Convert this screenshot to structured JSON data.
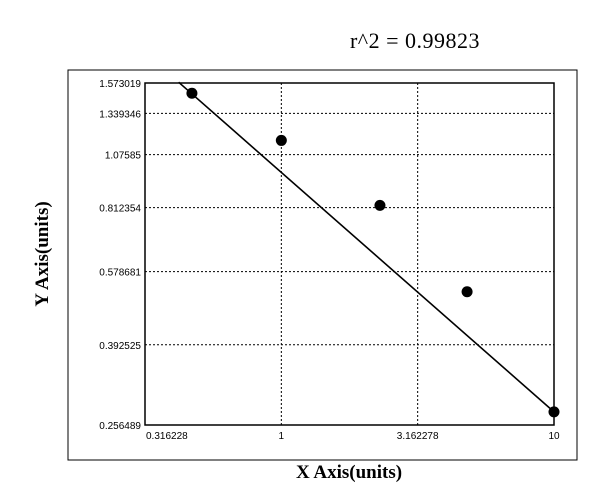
{
  "annotation": "r^2 = 0.99823",
  "chart_data": {
    "type": "scatter",
    "x_scale": "log",
    "y_scale": "log",
    "xlabel": "X Axis(units)",
    "ylabel": "Y Axis(units)",
    "x_ticks": [
      "0.316228",
      "1",
      "3.162278",
      "10"
    ],
    "x_tick_values": [
      0.316228,
      1,
      3.162278,
      10
    ],
    "y_ticks": [
      "1.573019",
      "1.339346",
      "1.07585",
      "0.812354",
      "0.578681",
      "0.392525",
      "0.256489"
    ],
    "y_tick_values": [
      1.573019,
      1.339346,
      1.07585,
      0.812354,
      0.578681,
      0.392525,
      0.256489
    ],
    "xlim": [
      0.316228,
      10
    ],
    "ylim": [
      0.256489,
      1.573019
    ],
    "grid": true,
    "series": [
      {
        "points": [
          {
            "x": 0.47,
            "y": 1.49
          },
          {
            "x": 1.0,
            "y": 1.16
          },
          {
            "x": 2.3,
            "y": 0.822
          },
          {
            "x": 4.8,
            "y": 0.52
          },
          {
            "x": 10.0,
            "y": 0.275
          }
        ]
      }
    ],
    "fit_line": {
      "x": [
        0.42,
        10.0
      ],
      "y": [
        1.58,
        0.275
      ]
    }
  }
}
